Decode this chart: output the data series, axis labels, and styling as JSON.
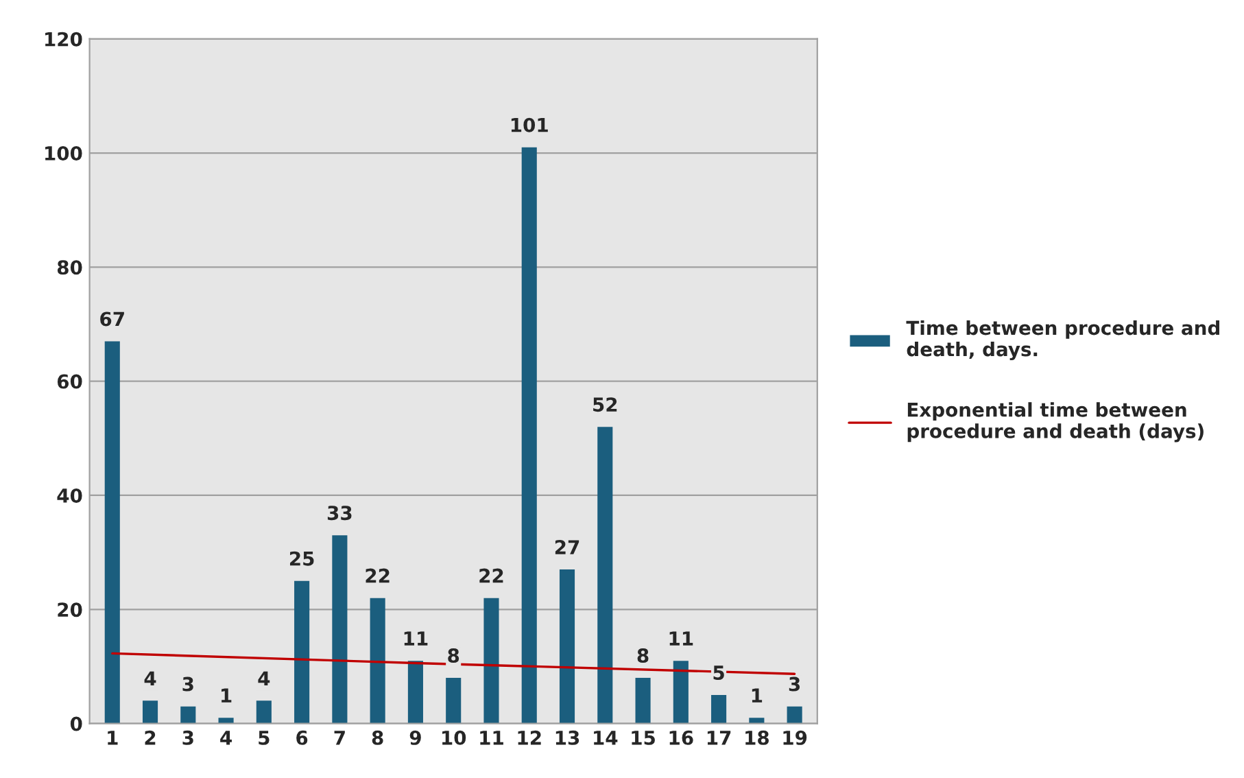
{
  "chart_data": {
    "type": "bar",
    "categories": [
      "1",
      "2",
      "3",
      "4",
      "5",
      "6",
      "7",
      "8",
      "9",
      "10",
      "11",
      "12",
      "13",
      "14",
      "15",
      "16",
      "17",
      "18",
      "19"
    ],
    "series": [
      {
        "name": "Time between procedure and death, days.",
        "color": "#1b5e7e",
        "values": [
          67,
          4,
          3,
          1,
          4,
          25,
          33,
          22,
          11,
          8,
          22,
          101,
          27,
          52,
          8,
          11,
          5,
          1,
          3
        ],
        "value_labels": [
          "67",
          "4",
          "3",
          "1",
          "4",
          "25",
          "33",
          "22",
          "11",
          "8",
          "22",
          "101",
          "27",
          "52",
          "8",
          "11",
          "5",
          "1",
          "3"
        ]
      },
      {
        "name": "Exponential time between procedure and death (days)",
        "type": "line",
        "color": "#c00000",
        "x": [
          "1",
          "9",
          "19"
        ],
        "values": [
          12.3,
          10.6,
          8.7
        ]
      }
    ],
    "ylim": [
      0,
      120
    ],
    "yticks": [
      0,
      20,
      40,
      60,
      80,
      100,
      120
    ],
    "grid": "y",
    "legend": "right"
  }
}
